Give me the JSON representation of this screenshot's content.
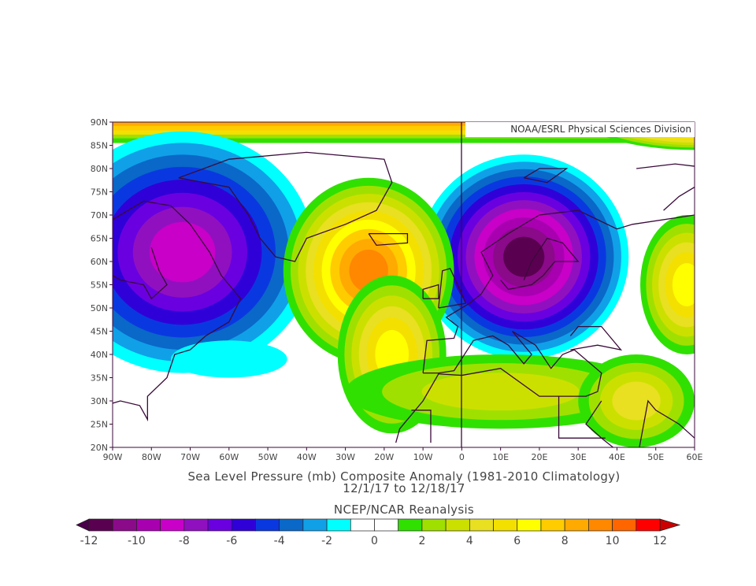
{
  "credit": "NOAA/ESRL Physical Sciences Division",
  "title": "Sea Level Pressure (mb) Composite Anomaly (1981-2010 Climatology)",
  "date_range": "12/1/17  to 12/18/17",
  "source": "NCEP/NCAR Reanalysis",
  "map": {
    "lon_range": [
      -90,
      60
    ],
    "lat_range": [
      20,
      90
    ],
    "lon_ticks": [
      "90W",
      "80W",
      "70W",
      "60W",
      "50W",
      "40W",
      "30W",
      "20W",
      "10W",
      "0",
      "10E",
      "20E",
      "30E",
      "40E",
      "50E",
      "60E"
    ],
    "lat_ticks": [
      "20N",
      "25N",
      "30N",
      "35N",
      "40N",
      "45N",
      "50N",
      "55N",
      "60N",
      "65N",
      "70N",
      "75N",
      "80N",
      "85N",
      "90N"
    ],
    "anomaly_centers": [
      {
        "name": "arctic-canada-low",
        "lon": -72,
        "lat": 62,
        "value": -8.5,
        "rx": 34,
        "ry": 26
      },
      {
        "name": "europe-low",
        "lon": 16,
        "lat": 61,
        "value": -11.5,
        "rx": 27,
        "ry": 22
      },
      {
        "name": "atlantic-high",
        "lon": -24,
        "lat": 58,
        "value": 9.5,
        "rx": 22,
        "ry": 20
      },
      {
        "name": "azores-high",
        "lon": -18,
        "lat": 40,
        "value": 6.5,
        "rx": 14,
        "ry": 17
      },
      {
        "name": "western-atlantic-cyan",
        "lon": -60,
        "lat": 39,
        "value": -1.5,
        "rx": 15,
        "ry": 4
      },
      {
        "name": "east-high",
        "lon": 58,
        "lat": 55,
        "value": 6.5,
        "rx": 12,
        "ry": 15
      },
      {
        "name": "north-africa-high",
        "lon": 10,
        "lat": 32,
        "value": 3.5,
        "rx": 40,
        "ry": 8
      },
      {
        "name": "arabia-high",
        "lon": 45,
        "lat": 30,
        "value": 4.5,
        "rx": 15,
        "ry": 10
      },
      {
        "name": "polar-high",
        "lon": 60,
        "lat": 92,
        "value": 12.5,
        "rx": 30,
        "ry": 8
      }
    ]
  },
  "colorbar": {
    "labels": [
      "-12",
      "-10",
      "-8",
      "-6",
      "-4",
      "-2",
      "0",
      "2",
      "4",
      "6",
      "8",
      "10",
      "12"
    ],
    "min": -12,
    "max": 12,
    "colors": [
      "#5a0050",
      "#8a0a8a",
      "#a800b0",
      "#c800c8",
      "#9010c0",
      "#6a00e0",
      "#3000d8",
      "#0a38e0",
      "#0a68c8",
      "#10a0e8",
      "#00ffff",
      "#ffffff",
      "#ffffff",
      "#30e000",
      "#a0e000",
      "#cce000",
      "#e8e020",
      "#f4e000",
      "#ffff00",
      "#ffcc00",
      "#ffaa00",
      "#ff8800",
      "#ff6600",
      "#ff0000"
    ],
    "under_color": "#4a004a",
    "over_color": "#cc0000"
  }
}
